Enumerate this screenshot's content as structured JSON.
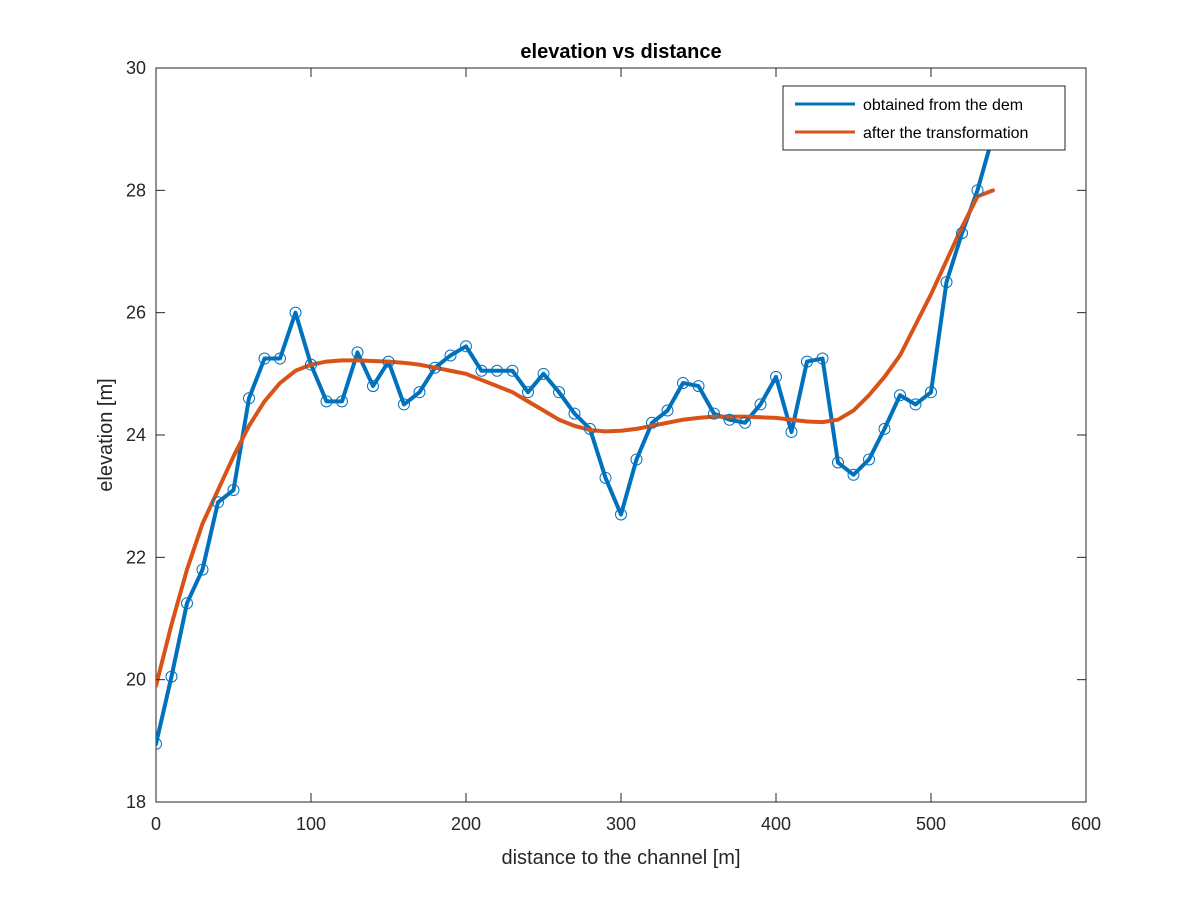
{
  "chart_data": {
    "type": "line",
    "title": "elevation vs distance",
    "xlabel": "distance to the channel [m]",
    "ylabel": "elevation [m]",
    "xlim": [
      0,
      600
    ],
    "ylim": [
      18,
      30
    ],
    "xticks": [
      0,
      100,
      200,
      300,
      400,
      500,
      600
    ],
    "yticks": [
      18,
      20,
      22,
      24,
      26,
      28,
      30
    ],
    "grid": false,
    "legend_position": "top-right",
    "series": [
      {
        "name": "obtained from the dem",
        "color": "#0072BD",
        "marker": "circle",
        "x": [
          0,
          10,
          20,
          30,
          40,
          50,
          60,
          70,
          80,
          90,
          100,
          110,
          120,
          130,
          140,
          150,
          160,
          170,
          180,
          190,
          200,
          210,
          220,
          230,
          240,
          250,
          260,
          270,
          280,
          290,
          300,
          310,
          320,
          330,
          340,
          350,
          360,
          370,
          380,
          390,
          400,
          410,
          420,
          430,
          440,
          450,
          460,
          470,
          480,
          490,
          500,
          510,
          520,
          530,
          540
        ],
        "y": [
          18.95,
          20.05,
          21.25,
          21.8,
          22.9,
          23.1,
          24.6,
          25.25,
          25.25,
          26.0,
          25.15,
          24.55,
          24.55,
          25.35,
          24.8,
          25.2,
          24.5,
          24.7,
          25.1,
          25.3,
          25.45,
          25.05,
          25.05,
          25.05,
          24.7,
          25.0,
          24.7,
          24.35,
          24.1,
          23.3,
          22.7,
          23.6,
          24.2,
          24.4,
          24.85,
          24.8,
          24.35,
          24.25,
          24.2,
          24.5,
          24.95,
          24.05,
          25.2,
          25.25,
          23.55,
          23.35,
          23.6,
          24.1,
          24.65,
          24.5,
          24.7,
          26.5,
          27.3,
          28.0,
          28.9
        ]
      },
      {
        "name": "after the transformation",
        "color": "#D95319",
        "marker": "none",
        "x": [
          0,
          10,
          20,
          30,
          40,
          50,
          60,
          70,
          80,
          90,
          100,
          110,
          120,
          130,
          140,
          150,
          160,
          170,
          180,
          190,
          200,
          210,
          220,
          230,
          240,
          250,
          260,
          270,
          280,
          290,
          300,
          310,
          320,
          330,
          340,
          350,
          360,
          370,
          380,
          390,
          400,
          410,
          420,
          430,
          440,
          450,
          460,
          470,
          480,
          490,
          500,
          510,
          520,
          530,
          540
        ],
        "y": [
          19.9,
          20.9,
          21.8,
          22.55,
          23.1,
          23.65,
          24.15,
          24.55,
          24.85,
          25.05,
          25.15,
          25.2,
          25.22,
          25.22,
          25.21,
          25.2,
          25.18,
          25.15,
          25.1,
          25.05,
          25.0,
          24.9,
          24.8,
          24.7,
          24.55,
          24.4,
          24.25,
          24.15,
          24.08,
          24.06,
          24.07,
          24.1,
          24.15,
          24.2,
          24.25,
          24.28,
          24.3,
          24.3,
          24.3,
          24.29,
          24.28,
          24.25,
          24.22,
          24.21,
          24.25,
          24.4,
          24.65,
          24.95,
          25.3,
          25.8,
          26.3,
          26.85,
          27.4,
          27.9,
          28.0
        ]
      }
    ]
  }
}
